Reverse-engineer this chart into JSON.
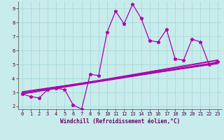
{
  "bg_color": "#c8ecec",
  "grid_color": "#a8d8d8",
  "line_color": "#aa00aa",
  "xlim": [
    -0.5,
    23.5
  ],
  "ylim": [
    1.8,
    9.5
  ],
  "yticks": [
    2,
    3,
    4,
    5,
    6,
    7,
    8,
    9
  ],
  "xticks": [
    0,
    1,
    2,
    3,
    4,
    5,
    6,
    7,
    8,
    9,
    10,
    11,
    12,
    13,
    14,
    15,
    16,
    17,
    18,
    19,
    20,
    21,
    22,
    23
  ],
  "xlabel": "Windchill (Refroidissement éolien,°C)",
  "series_jagged": {
    "x": [
      0,
      1,
      2,
      3,
      4,
      5,
      6,
      7,
      8,
      9,
      10,
      11,
      12,
      13,
      14,
      15,
      16,
      17,
      18,
      19,
      20,
      21,
      22,
      23
    ],
    "y": [
      2.9,
      2.7,
      2.6,
      3.2,
      3.3,
      3.2,
      2.1,
      1.8,
      4.3,
      4.2,
      7.3,
      8.8,
      7.9,
      9.3,
      8.3,
      6.7,
      6.6,
      7.5,
      5.4,
      5.3,
      6.8,
      6.6,
      5.0,
      5.2
    ]
  },
  "series_lines": [
    {
      "x0": 0,
      "y0": 2.9,
      "x1": 23,
      "y1": 5.3,
      "lw": 1.4
    },
    {
      "x0": 0,
      "y0": 2.9,
      "x1": 23,
      "y1": 5.1,
      "lw": 1.0
    },
    {
      "x0": 0,
      "y0": 3.0,
      "x1": 23,
      "y1": 5.15,
      "lw": 1.0
    },
    {
      "x0": 0,
      "y0": 3.05,
      "x1": 23,
      "y1": 5.05,
      "lw": 0.9
    }
  ],
  "tick_fontsize": 5.0,
  "xlabel_fontsize": 5.5
}
